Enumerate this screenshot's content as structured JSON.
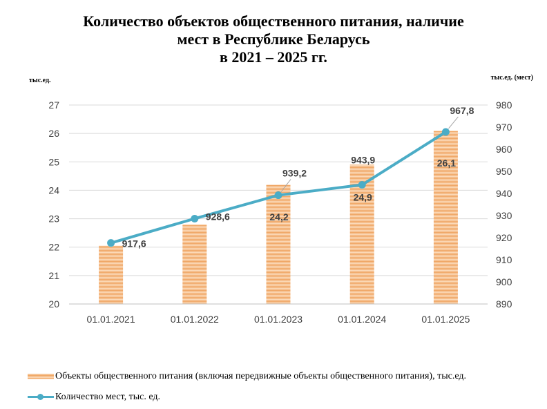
{
  "title": {
    "line1": "Количество объектов общественного питания, наличие",
    "line2": "мест  в Республике Беларусь",
    "line3": "в 2021 – 2025 гг."
  },
  "units": {
    "left": "тыс.ед.",
    "right": "тыс.ед. (мест)"
  },
  "legend": {
    "bars": "Объекты общественного питания (включая передвижные объекты общественного питания), тыс.ед.",
    "line": "Количество мест, тыс. ед."
  },
  "colors": {
    "bar": "#f0a868",
    "bar_light": "#fbd9b8",
    "line": "#4bacc6"
  },
  "chart_data": {
    "type": "bar",
    "categories": [
      "01.01.2021",
      "01.01.2022",
      "01.01.2023",
      "01.01.2024",
      "01.01.2025"
    ],
    "series": [
      {
        "name": "Объекты общественного питания (включая передвижные объекты общественного питания), тыс.ед.",
        "type": "bar",
        "axis": "left",
        "values": [
          22.05,
          22.8,
          24.2,
          24.9,
          26.1
        ],
        "labels": [
          "",
          "",
          "24,2",
          "24,9",
          "26,1"
        ]
      },
      {
        "name": "Количество мест, тыс. ед.",
        "type": "line",
        "axis": "right",
        "values": [
          917.6,
          928.6,
          939.2,
          943.9,
          967.8
        ],
        "labels": [
          "917,6",
          "928,6",
          "939,2",
          "943,9",
          "967,8"
        ]
      }
    ],
    "y_left": {
      "min": 20,
      "max": 27,
      "ticks": [
        "20",
        "21",
        "22",
        "23",
        "24",
        "25",
        "26",
        "27"
      ]
    },
    "y_right": {
      "min": 890,
      "max": 980,
      "ticks": [
        "890",
        "900",
        "910",
        "920",
        "930",
        "940",
        "950",
        "960",
        "970",
        "980"
      ]
    },
    "grid": true,
    "legend_position": "bottom"
  }
}
